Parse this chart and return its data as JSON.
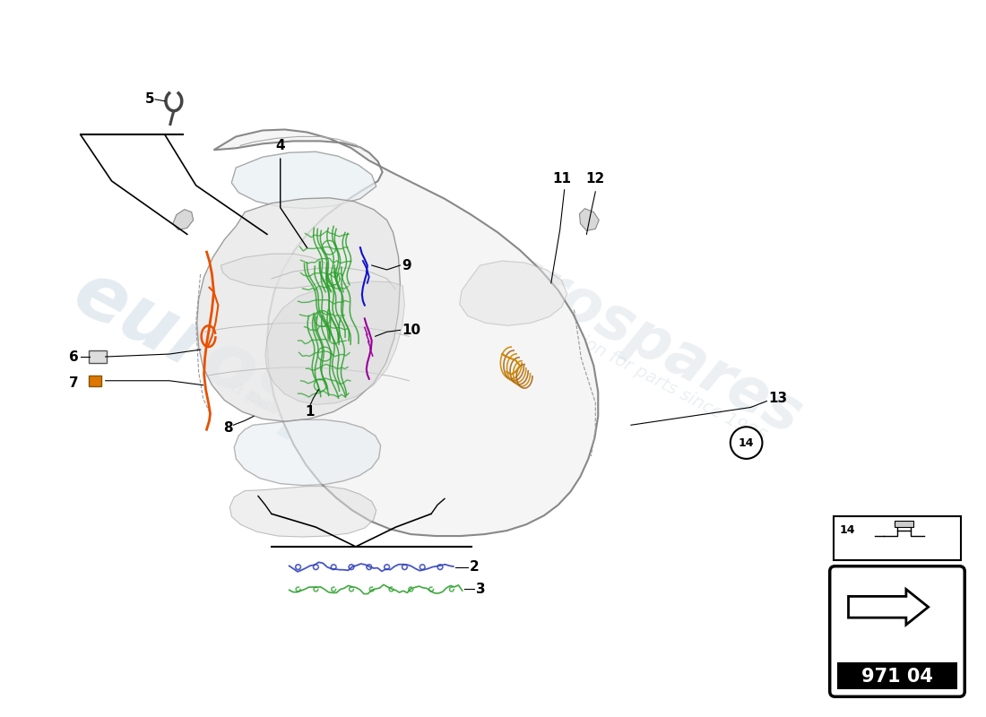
{
  "page_code": "971 04",
  "background_color": "#ffffff",
  "watermark_text1": "eurospares",
  "watermark_text2": "a passion for parts since 1985",
  "wire_colors": {
    "orange": "#e85000",
    "green": "#2aa02a",
    "blue": "#1111cc",
    "purple": "#990099",
    "yellow_brown": "#cc8800",
    "brown": "#aa6622"
  },
  "label_fontsize": 11,
  "car_fill": "#f5f5f5",
  "car_edge": "#888888",
  "car_interior_fill": "#eeeeee",
  "car_glass_fill": "#e8eef3"
}
